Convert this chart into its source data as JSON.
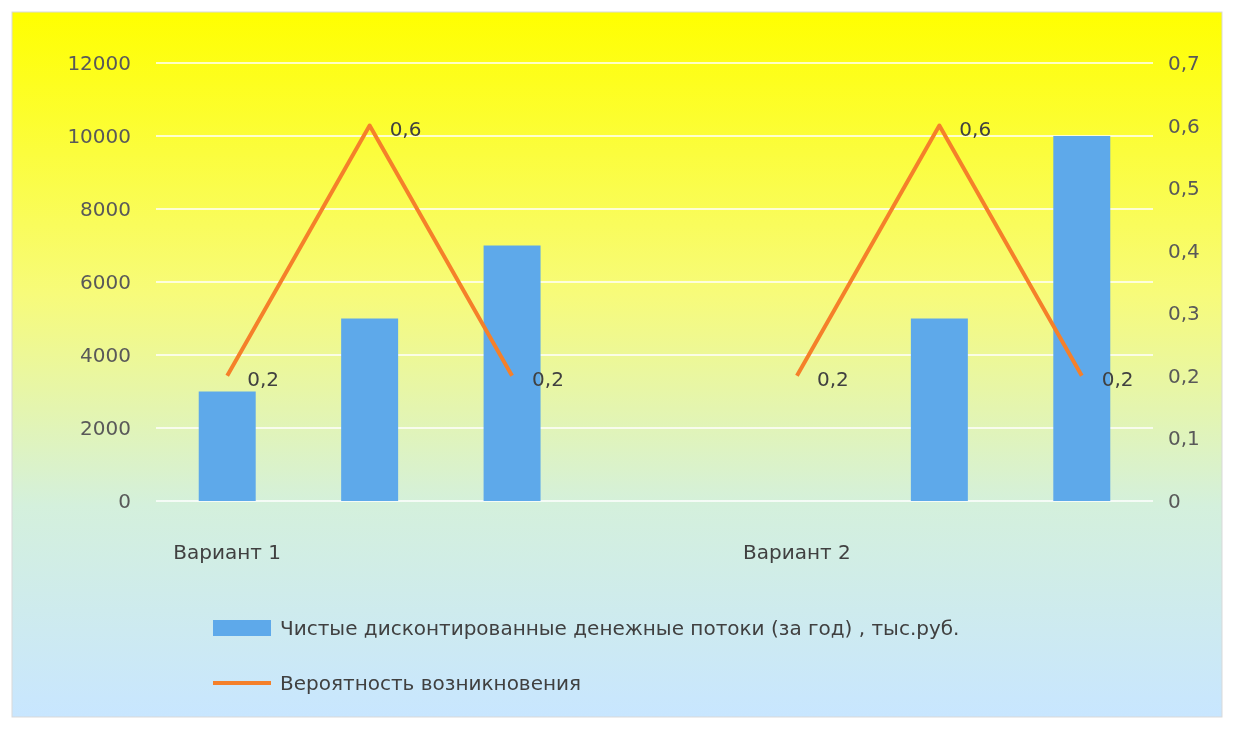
{
  "chart_data": {
    "type": "bar",
    "categories": [
      "Вариант 1",
      null,
      null,
      null,
      "Вариант 2",
      null,
      null
    ],
    "series": [
      {
        "name": "Чистые дисконтированные денежные потоки (за год) , тыс.руб.",
        "color": "#5ea9ea",
        "values": [
          3000,
          5000,
          7000,
          null,
          null,
          5000,
          10000
        ]
      },
      {
        "name": "Вероятность возникновения",
        "type": "line",
        "axis": "y2",
        "color": "#f5802a",
        "values": [
          0.2,
          0.6,
          0.2,
          null,
          0.2,
          0.6,
          0.2
        ],
        "value_labels": [
          "0,2",
          "0,6",
          "0,2",
          null,
          "0,2",
          "0,6",
          "0,2"
        ]
      }
    ],
    "ylim": [
      0,
      12000
    ],
    "yticks": [
      0,
      2000,
      4000,
      6000,
      8000,
      10000,
      12000
    ],
    "y2lim": [
      0,
      0.7
    ],
    "y2ticks": [
      0,
      {
        "value": 0.1,
        "label": "0,1"
      },
      {
        "value": 0.2,
        "label": "0,2"
      },
      {
        "value": 0.3,
        "label": "0,3"
      },
      {
        "value": 0.4,
        "label": "0,4"
      },
      {
        "value": 0.5,
        "label": "0,5"
      },
      {
        "value": 0.6,
        "label": "0,6"
      },
      {
        "value": 0.7,
        "label": "0,7"
      }
    ],
    "grid": "y",
    "legend": "bottom",
    "marker": "none",
    "line_style": "solid"
  }
}
